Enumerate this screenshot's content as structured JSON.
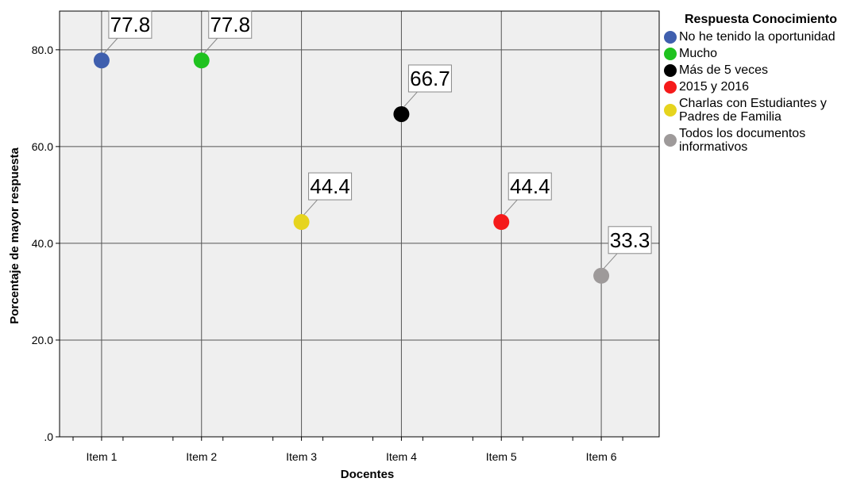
{
  "chart_data": {
    "type": "scatter",
    "title": "",
    "xlabel": "Docentes",
    "ylabel": "Porcentaje de mayor respuesta",
    "categories": [
      "Item 1",
      "Item 2",
      "Item 3",
      "Item 4",
      "Item 5",
      "Item 6"
    ],
    "ylim": [
      0,
      88
    ],
    "yticks": [
      0,
      20,
      40,
      60,
      80
    ],
    "ytick_labels": [
      ".0",
      "20.0",
      "40.0",
      "60.0",
      "80.0"
    ],
    "grid": true,
    "legend_title": "Respuesta Conocimiento",
    "legend_position": "right",
    "series": [
      {
        "name": "No he tenido la oportunidad",
        "x": "Item 1",
        "value": 77.8,
        "label": "77.8",
        "color": "#3f5fae"
      },
      {
        "name": "Mucho",
        "x": "Item 2",
        "value": 77.8,
        "label": "77.8",
        "color": "#1fc21f"
      },
      {
        "name": "Charlas con Estudiantes y Padres de Familia",
        "x": "Item 3",
        "value": 44.4,
        "label": "44.4",
        "color": "#e6d41e"
      },
      {
        "name": "Más de 5 veces",
        "x": "Item 4",
        "value": 66.7,
        "label": "66.7",
        "color": "#000000"
      },
      {
        "name": "2015 y 2016",
        "x": "Item 5",
        "value": 44.4,
        "label": "44.4",
        "color": "#f51a1a"
      },
      {
        "name": "Todos los documentos informativos",
        "x": "Item 6",
        "value": 33.3,
        "label": "33.3",
        "color": "#9e9a9a"
      }
    ],
    "legend_items": [
      {
        "lines": [
          "No he tenido la oportunidad"
        ],
        "color": "#3f5fae"
      },
      {
        "lines": [
          "Mucho"
        ],
        "color": "#1fc21f"
      },
      {
        "lines": [
          "Más de 5 veces"
        ],
        "color": "#000000"
      },
      {
        "lines": [
          "2015 y 2016"
        ],
        "color": "#f51a1a"
      },
      {
        "lines": [
          "Charlas con Estudiantes y",
          "Padres de Familia"
        ],
        "color": "#e6d41e"
      },
      {
        "lines": [
          "Todos los documentos",
          "informativos"
        ],
        "color": "#9e9a9a"
      }
    ]
  }
}
